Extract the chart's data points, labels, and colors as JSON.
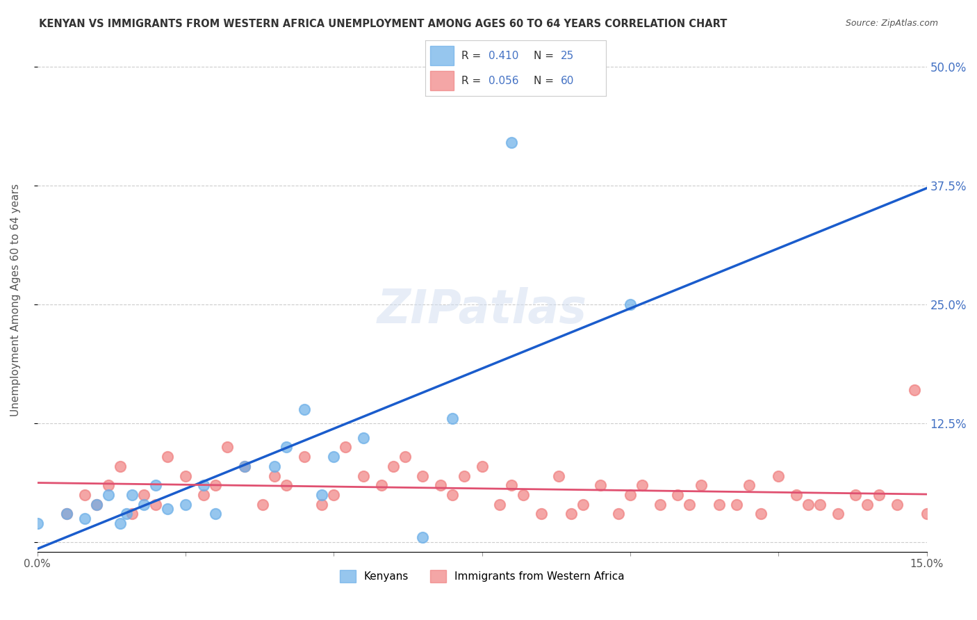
{
  "title": "KENYAN VS IMMIGRANTS FROM WESTERN AFRICA UNEMPLOYMENT AMONG AGES 60 TO 64 YEARS CORRELATION CHART",
  "source": "Source: ZipAtlas.com",
  "ylabel": "Unemployment Among Ages 60 to 64 years",
  "xlim": [
    0.0,
    0.15
  ],
  "ylim": [
    -0.01,
    0.52
  ],
  "ytick_positions": [
    0.0,
    0.125,
    0.25,
    0.375,
    0.5
  ],
  "ytick_labels": [
    "",
    "12.5%",
    "25.0%",
    "37.5%",
    "50.0%"
  ],
  "watermark": "ZIPatlas",
  "blue_R": 0.41,
  "blue_N": 25,
  "pink_R": 0.056,
  "pink_N": 60,
  "blue_color": "#6aaee8",
  "pink_color": "#f08080",
  "blue_line_color": "#1a5ccc",
  "pink_line_color": "#e05070",
  "dashed_line_color": "#a0b8d8",
  "blue_scatter_x": [
    0.0,
    0.005,
    0.008,
    0.01,
    0.012,
    0.014,
    0.015,
    0.016,
    0.018,
    0.02,
    0.022,
    0.025,
    0.028,
    0.03,
    0.035,
    0.04,
    0.042,
    0.045,
    0.048,
    0.05,
    0.055,
    0.065,
    0.07,
    0.1,
    0.08
  ],
  "blue_scatter_y": [
    0.02,
    0.03,
    0.025,
    0.04,
    0.05,
    0.02,
    0.03,
    0.05,
    0.04,
    0.06,
    0.035,
    0.04,
    0.06,
    0.03,
    0.08,
    0.08,
    0.1,
    0.14,
    0.05,
    0.09,
    0.11,
    0.005,
    0.13,
    0.25,
    0.42
  ],
  "pink_scatter_x": [
    0.005,
    0.008,
    0.01,
    0.012,
    0.014,
    0.016,
    0.018,
    0.02,
    0.022,
    0.025,
    0.028,
    0.03,
    0.032,
    0.035,
    0.038,
    0.04,
    0.042,
    0.045,
    0.048,
    0.05,
    0.052,
    0.055,
    0.058,
    0.06,
    0.062,
    0.065,
    0.068,
    0.07,
    0.072,
    0.075,
    0.078,
    0.08,
    0.082,
    0.085,
    0.088,
    0.09,
    0.092,
    0.095,
    0.098,
    0.1,
    0.102,
    0.105,
    0.108,
    0.11,
    0.112,
    0.115,
    0.118,
    0.12,
    0.122,
    0.125,
    0.128,
    0.13,
    0.132,
    0.135,
    0.138,
    0.14,
    0.142,
    0.145,
    0.148,
    0.15
  ],
  "pink_scatter_y": [
    0.03,
    0.05,
    0.04,
    0.06,
    0.08,
    0.03,
    0.05,
    0.04,
    0.09,
    0.07,
    0.05,
    0.06,
    0.1,
    0.08,
    0.04,
    0.07,
    0.06,
    0.09,
    0.04,
    0.05,
    0.1,
    0.07,
    0.06,
    0.08,
    0.09,
    0.07,
    0.06,
    0.05,
    0.07,
    0.08,
    0.04,
    0.06,
    0.05,
    0.03,
    0.07,
    0.03,
    0.04,
    0.06,
    0.03,
    0.05,
    0.06,
    0.04,
    0.05,
    0.04,
    0.06,
    0.04,
    0.04,
    0.06,
    0.03,
    0.07,
    0.05,
    0.04,
    0.04,
    0.03,
    0.05,
    0.04,
    0.05,
    0.04,
    0.16,
    0.03
  ],
  "grid_color": "#cccccc",
  "background_color": "#ffffff"
}
